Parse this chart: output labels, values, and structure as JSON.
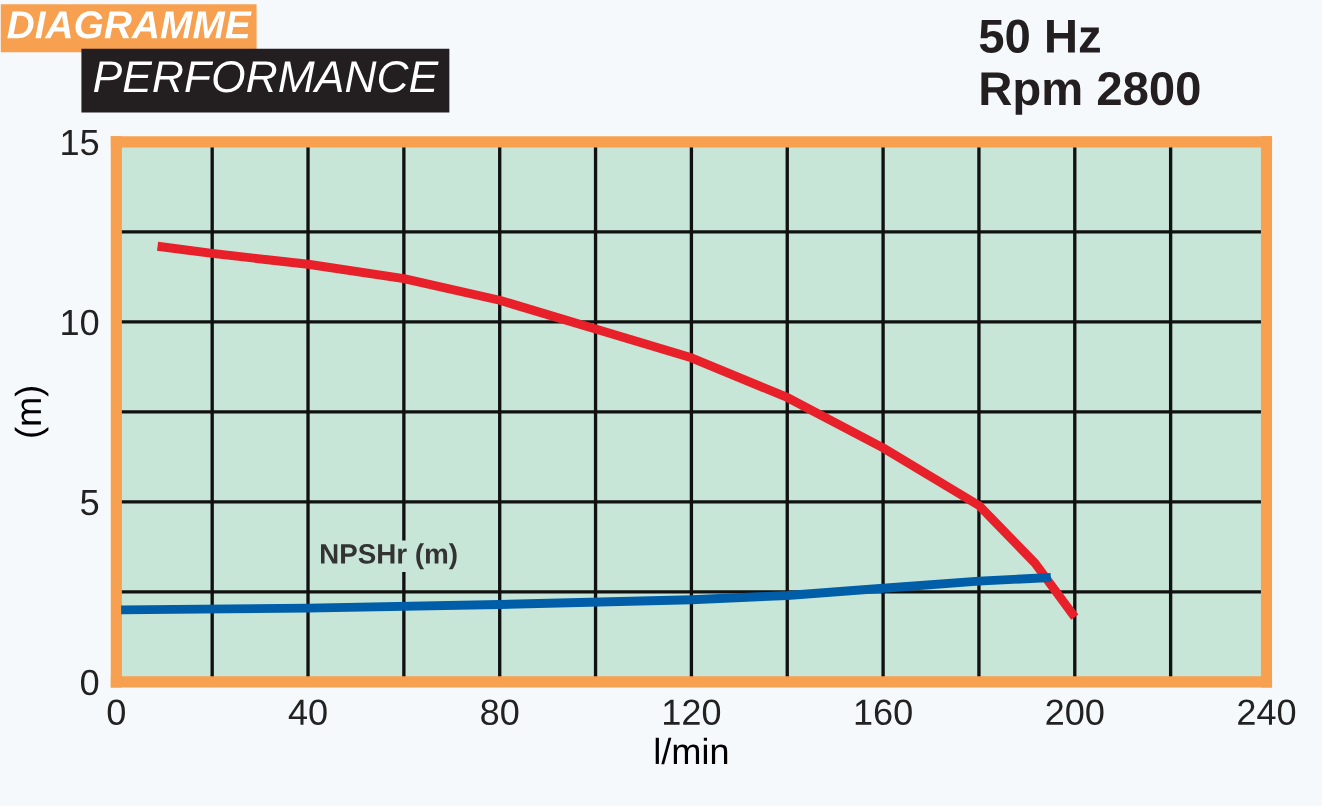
{
  "chart_data": {
    "type": "line",
    "title": "DIAGRAMME",
    "subtitle": "PERFORMANCE",
    "xlabel": "l/min",
    "ylabel": "(m)",
    "annotations": [
      "50 Hz",
      "Rpm 2800"
    ],
    "series": [
      {
        "color": "#e8202a",
        "x": [
          8.6,
          20,
          40,
          60,
          80,
          100,
          120,
          140,
          160,
          180,
          191.7,
          200
        ],
        "values": [
          12.1,
          11.9,
          11.6,
          11.2,
          10.6,
          9.8,
          9.0,
          7.9,
          6.5,
          4.9,
          3.3,
          1.8
        ]
      },
      {
        "name": "NPSHr (m)",
        "color": "#005ea8",
        "x": [
          1,
          40,
          80,
          120,
          140,
          160,
          180,
          195
        ],
        "values": [
          2.0,
          2.05,
          2.15,
          2.28,
          2.4,
          2.6,
          2.8,
          2.9
        ]
      }
    ],
    "xlim": [
      0,
      240
    ],
    "xticks": [
      0,
      {
        "value": 20,
        "label": null
      },
      40,
      {
        "value": 60,
        "label": null
      },
      80,
      {
        "value": 100,
        "label": null
      },
      120,
      {
        "value": 140,
        "label": null
      },
      160,
      {
        "value": 180,
        "label": null
      },
      200,
      {
        "value": 220,
        "label": null
      },
      240
    ],
    "ylim": [
      0,
      15
    ],
    "yticks": [
      0,
      {
        "value": 2.5,
        "label": null
      },
      5,
      {
        "value": 7.5,
        "label": null
      },
      10,
      {
        "value": 12.5,
        "label": null
      },
      15
    ],
    "grid": true,
    "legend": false,
    "marker": "none",
    "line_style": "solid"
  }
}
